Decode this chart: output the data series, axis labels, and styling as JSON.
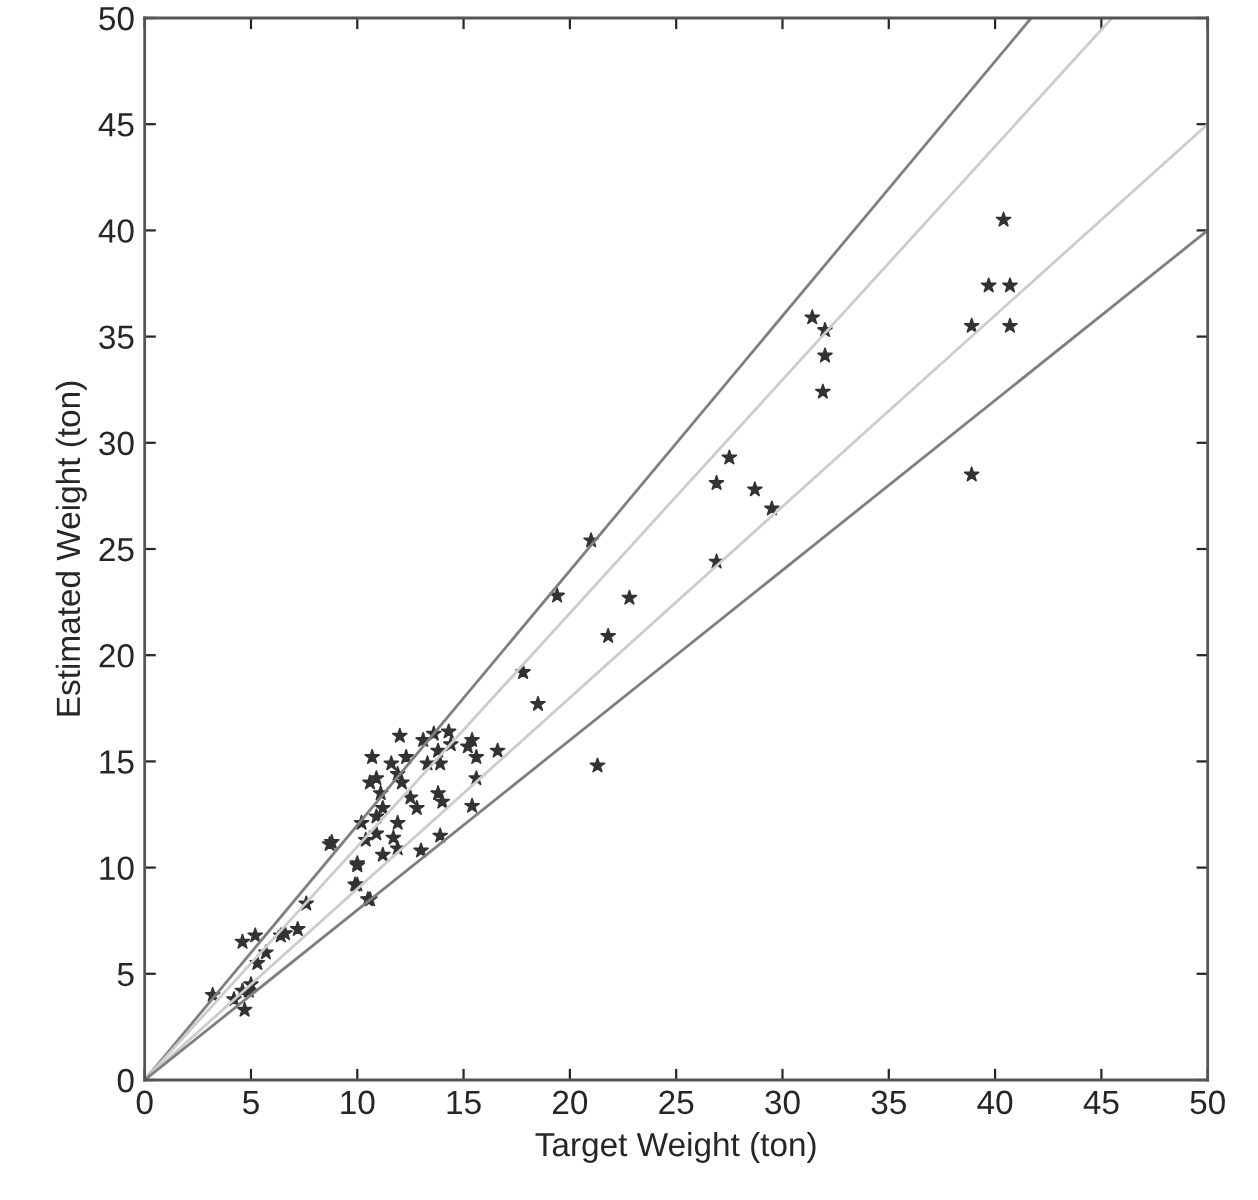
{
  "chart_data": {
    "type": "scatter",
    "xlabel": "Target Weight (ton)",
    "ylabel": "Estimated Weight (ton)",
    "xlim": [
      0,
      50
    ],
    "ylim": [
      0,
      50
    ],
    "xticks": [
      0,
      5,
      10,
      15,
      20,
      25,
      30,
      35,
      40,
      45,
      50
    ],
    "yticks": [
      0,
      5,
      10,
      15,
      20,
      25,
      30,
      35,
      40,
      45,
      50
    ],
    "grid": false,
    "series": [
      {
        "type": "line",
        "marker": "none",
        "color": "#7f7f7f",
        "x": [
          0,
          41.7
        ],
        "values": [
          0,
          50
        ]
      },
      {
        "type": "line",
        "marker": "none",
        "color": "#cccccc",
        "x": [
          0,
          45.5
        ],
        "values": [
          0,
          50
        ]
      },
      {
        "type": "line",
        "marker": "none",
        "color": "#cccccc",
        "x": [
          0,
          50
        ],
        "values": [
          0,
          45
        ]
      },
      {
        "type": "line",
        "marker": "none",
        "color": "#7f7f7f",
        "x": [
          0,
          50
        ],
        "values": [
          0,
          40
        ]
      },
      {
        "marker": "star",
        "color": "#333333",
        "x": [
          21.0,
          19.4,
          22.8,
          21.8,
          17.8,
          18.5,
          21.3,
          31.4,
          32.0,
          32.0,
          31.9,
          27.5,
          26.9,
          28.7,
          29.5,
          26.9,
          40.4,
          39.7,
          40.7,
          38.9,
          40.7,
          38.9,
          3.2,
          4.6,
          5.2,
          5.3,
          5.7,
          6.4,
          6.6,
          7.2,
          7.6,
          8.7,
          10.0,
          9.9,
          10.5,
          5.0,
          4.6,
          4.2,
          4.7,
          4.9,
          12.0,
          13.1,
          13.6,
          14.3,
          15.4,
          16.6,
          15.2,
          15.6,
          14.4,
          13.8,
          13.9,
          13.3,
          10.7,
          12.3,
          11.6,
          10.9,
          11.9,
          10.6,
          12.1,
          11.1,
          15.6,
          13.8,
          14.0,
          12.5,
          12.8,
          15.4,
          11.2,
          10.9,
          11.9,
          10.2,
          8.8,
          10.4,
          10.9,
          11.7,
          11.9,
          13.9,
          13.0,
          11.2,
          10.0,
          10.0,
          10.6
        ],
        "values": [
          25.4,
          22.8,
          22.7,
          20.9,
          19.2,
          17.7,
          14.8,
          35.9,
          35.3,
          34.1,
          32.4,
          29.3,
          28.1,
          27.8,
          26.9,
          24.4,
          40.5,
          37.4,
          37.4,
          35.5,
          35.5,
          28.5,
          4.0,
          6.5,
          6.8,
          5.5,
          6.0,
          6.8,
          6.9,
          7.1,
          8.3,
          11.1,
          10.1,
          9.2,
          8.5,
          4.5,
          4.2,
          3.8,
          3.3,
          4.2,
          16.2,
          16.0,
          16.3,
          16.4,
          16.0,
          15.5,
          15.7,
          15.2,
          15.8,
          15.5,
          14.9,
          14.9,
          15.2,
          15.2,
          14.9,
          14.2,
          14.4,
          14.0,
          14.0,
          13.5,
          14.2,
          13.5,
          13.1,
          13.3,
          12.8,
          12.9,
          12.8,
          12.4,
          12.1,
          12.1,
          11.2,
          11.3,
          11.6,
          11.4,
          10.9,
          11.5,
          10.8,
          10.6,
          10.2,
          9.2,
          8.5
        ]
      }
    ]
  }
}
